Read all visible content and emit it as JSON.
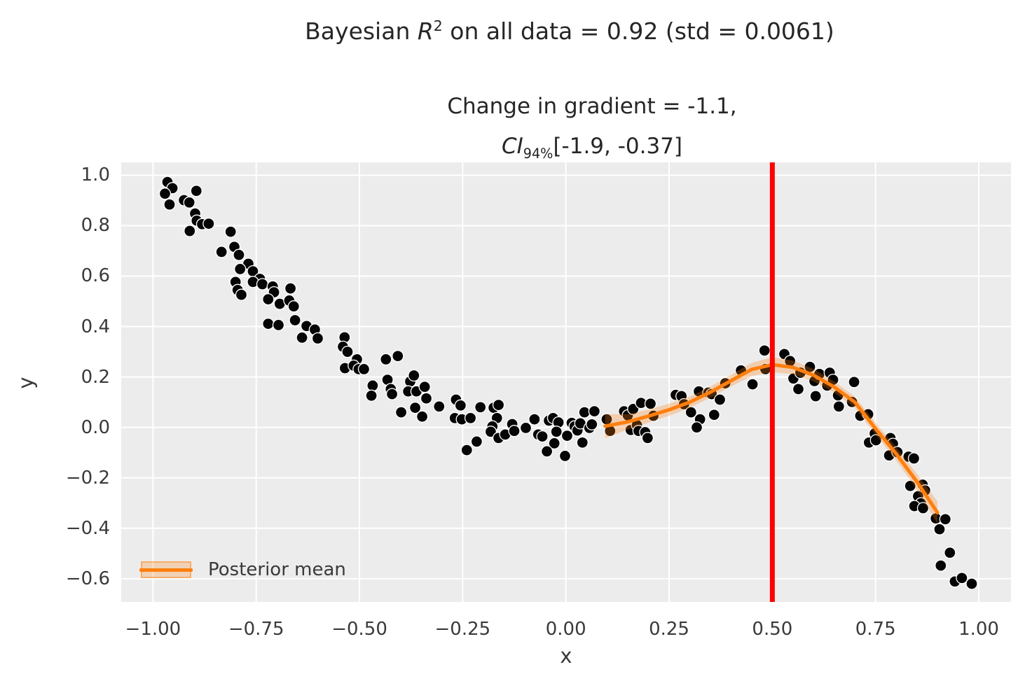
{
  "suptitle": {
    "pre": "Bayesian ",
    "var": "R",
    "sup": "2",
    "post": " on all data = 0.92 (std = 0.0061)"
  },
  "axes_title": {
    "line1": "Change in gradient = -1.1,",
    "ci_var": "CI",
    "ci_sub": "94%",
    "ci_rest": "[-1.9, -0.37]"
  },
  "legend": {
    "label": "Posterior mean"
  },
  "axis": {
    "xlabel": "x",
    "ylabel": "y",
    "x_ticks": [
      {
        "v": -1.0,
        "label": "−1.00"
      },
      {
        "v": -0.75,
        "label": "−0.75"
      },
      {
        "v": -0.5,
        "label": "−0.50"
      },
      {
        "v": -0.25,
        "label": "−0.25"
      },
      {
        "v": 0.0,
        "label": "0.00"
      },
      {
        "v": 0.25,
        "label": "0.25"
      },
      {
        "v": 0.5,
        "label": "0.50"
      },
      {
        "v": 0.75,
        "label": "0.75"
      },
      {
        "v": 1.0,
        "label": "1.00"
      }
    ],
    "y_ticks": [
      {
        "v": 1.0,
        "label": "1.0"
      },
      {
        "v": 0.8,
        "label": "0.8"
      },
      {
        "v": 0.6,
        "label": "0.6"
      },
      {
        "v": 0.4,
        "label": "0.4"
      },
      {
        "v": 0.2,
        "label": "0.2"
      },
      {
        "v": 0.0,
        "label": "0.0"
      },
      {
        "v": -0.2,
        "label": "−0.2"
      },
      {
        "v": -0.4,
        "label": "−0.4"
      },
      {
        "v": -0.6,
        "label": "−0.6"
      }
    ]
  },
  "colors": {
    "plot_bg": "#ececec",
    "grid": "#ffffff",
    "scatter": "#050505",
    "scatter_edge": "#ffffff",
    "mean_line": "#ff7f0e",
    "band": "#ff7f0e",
    "vline": "#fe0000",
    "text": "#262626",
    "tick_text": "#3a3a3a"
  },
  "chart_data": {
    "type": "scatter",
    "title": "Bayesian R^2 on all data = 0.92 (std = 0.0061)",
    "subtitle": "Change in gradient = -1.1, CI_94% [-1.9, -0.37]",
    "xlabel": "x",
    "ylabel": "y",
    "xlim": [
      -1.077,
      1.078
    ],
    "ylim": [
      -0.692,
      1.051
    ],
    "grid": true,
    "legend_position": "lower left",
    "vline": {
      "x": 0.5,
      "color": "#fe0000"
    },
    "scatter_points": [
      [
        -0.965,
        0.973
      ],
      [
        -0.953,
        0.949
      ],
      [
        -0.971,
        0.927
      ],
      [
        -0.895,
        0.938
      ],
      [
        -0.96,
        0.884
      ],
      [
        -0.925,
        0.901
      ],
      [
        -0.912,
        0.892
      ],
      [
        -0.898,
        0.848
      ],
      [
        -0.894,
        0.82
      ],
      [
        -0.881,
        0.806
      ],
      [
        -0.865,
        0.808
      ],
      [
        -0.911,
        0.779
      ],
      [
        -0.812,
        0.776
      ],
      [
        -0.834,
        0.696
      ],
      [
        -0.803,
        0.716
      ],
      [
        -0.792,
        0.684
      ],
      [
        -0.769,
        0.649
      ],
      [
        -0.789,
        0.628
      ],
      [
        -0.758,
        0.619
      ],
      [
        -0.741,
        0.589
      ],
      [
        -0.758,
        0.577
      ],
      [
        -0.8,
        0.577
      ],
      [
        -0.795,
        0.545
      ],
      [
        -0.786,
        0.526
      ],
      [
        -0.735,
        0.568
      ],
      [
        -0.71,
        0.559
      ],
      [
        -0.707,
        0.536
      ],
      [
        -0.721,
        0.508
      ],
      [
        -0.693,
        0.49
      ],
      [
        -0.667,
        0.551
      ],
      [
        -0.67,
        0.503
      ],
      [
        -0.659,
        0.48
      ],
      [
        -0.721,
        0.411
      ],
      [
        -0.696,
        0.406
      ],
      [
        -0.656,
        0.425
      ],
      [
        -0.628,
        0.402
      ],
      [
        -0.608,
        0.388
      ],
      [
        -0.639,
        0.356
      ],
      [
        -0.601,
        0.353
      ],
      [
        -0.536,
        0.357
      ],
      [
        -0.54,
        0.32
      ],
      [
        -0.529,
        0.3
      ],
      [
        -0.506,
        0.27
      ],
      [
        -0.535,
        0.235
      ],
      [
        -0.514,
        0.245
      ],
      [
        -0.502,
        0.231
      ],
      [
        -0.489,
        0.231
      ],
      [
        -0.436,
        0.27
      ],
      [
        -0.407,
        0.283
      ],
      [
        -0.468,
        0.166
      ],
      [
        -0.471,
        0.126
      ],
      [
        -0.432,
        0.189
      ],
      [
        -0.424,
        0.152
      ],
      [
        -0.421,
        0.132
      ],
      [
        -0.377,
        0.182
      ],
      [
        -0.368,
        0.206
      ],
      [
        -0.382,
        0.143
      ],
      [
        -0.362,
        0.143
      ],
      [
        -0.342,
        0.161
      ],
      [
        -0.338,
        0.115
      ],
      [
        -0.399,
        0.06
      ],
      [
        -0.365,
        0.078
      ],
      [
        -0.348,
        0.043
      ],
      [
        -0.307,
        0.083
      ],
      [
        -0.266,
        0.11
      ],
      [
        -0.255,
        0.087
      ],
      [
        -0.269,
        0.037
      ],
      [
        -0.252,
        0.032
      ],
      [
        -0.231,
        0.037
      ],
      [
        -0.216,
        -0.056
      ],
      [
        -0.24,
        -0.09
      ],
      [
        -0.207,
        0.08
      ],
      [
        -0.175,
        0.078
      ],
      [
        -0.163,
        0.089
      ],
      [
        -0.167,
        0.037
      ],
      [
        -0.178,
        0.004
      ],
      [
        -0.182,
        -0.017
      ],
      [
        -0.163,
        -0.042
      ],
      [
        -0.147,
        -0.028
      ],
      [
        -0.13,
        0.013
      ],
      [
        -0.125,
        -0.014
      ],
      [
        -0.097,
        -0.002
      ],
      [
        -0.076,
        0.032
      ],
      [
        -0.067,
        -0.028
      ],
      [
        -0.057,
        -0.036
      ],
      [
        -0.041,
        0.027
      ],
      [
        -0.031,
        0.037
      ],
      [
        -0.018,
        0.02
      ],
      [
        -0.023,
        -0.017
      ],
      [
        -0.028,
        -0.063
      ],
      [
        -0.046,
        -0.095
      ],
      [
        -0.002,
        -0.113
      ],
      [
        0.003,
        -0.033
      ],
      [
        0.014,
        0.018
      ],
      [
        0.021,
        0.004
      ],
      [
        0.028,
        -0.012
      ],
      [
        0.035,
        0.016
      ],
      [
        0.045,
        0.06
      ],
      [
        0.057,
        -0.002
      ],
      [
        0.063,
        0.012
      ],
      [
        0.04,
        -0.06
      ],
      [
        0.069,
        0.064
      ],
      [
        0.099,
        0.032
      ],
      [
        0.107,
        -0.014
      ],
      [
        0.141,
        0.064
      ],
      [
        0.15,
        0.048
      ],
      [
        0.163,
        0.073
      ],
      [
        0.157,
        -0.01
      ],
      [
        0.172,
        0.009
      ],
      [
        0.182,
        0.097
      ],
      [
        0.176,
        -0.014
      ],
      [
        0.192,
        -0.019
      ],
      [
        0.205,
        0.094
      ],
      [
        0.212,
        0.046
      ],
      [
        0.198,
        -0.042
      ],
      [
        0.266,
        0.129
      ],
      [
        0.28,
        0.124
      ],
      [
        0.286,
        0.092
      ],
      [
        0.303,
        0.06
      ],
      [
        0.322,
        0.143
      ],
      [
        0.325,
        0.032
      ],
      [
        0.317,
        0.0
      ],
      [
        0.345,
        0.138
      ],
      [
        0.353,
        0.132
      ],
      [
        0.359,
        0.05
      ],
      [
        0.373,
        0.11
      ],
      [
        0.386,
        0.175
      ],
      [
        0.424,
        0.226
      ],
      [
        0.452,
        0.171
      ],
      [
        0.481,
        0.305
      ],
      [
        0.483,
        0.231
      ],
      [
        0.529,
        0.291
      ],
      [
        0.543,
        0.263
      ],
      [
        0.551,
        0.194
      ],
      [
        0.563,
        0.152
      ],
      [
        0.568,
        0.217
      ],
      [
        0.591,
        0.24
      ],
      [
        0.602,
        0.184
      ],
      [
        0.605,
        0.124
      ],
      [
        0.614,
        0.212
      ],
      [
        0.639,
        0.217
      ],
      [
        0.633,
        0.166
      ],
      [
        0.647,
        0.189
      ],
      [
        0.659,
        0.127
      ],
      [
        0.698,
        0.18
      ],
      [
        0.661,
        0.083
      ],
      [
        0.693,
        0.101
      ],
      [
        0.713,
        0.046
      ],
      [
        0.732,
        0.052
      ],
      [
        0.748,
        -0.024
      ],
      [
        0.734,
        -0.06
      ],
      [
        0.751,
        -0.051
      ],
      [
        0.786,
        -0.042
      ],
      [
        0.792,
        -0.065
      ],
      [
        0.783,
        -0.111
      ],
      [
        0.803,
        -0.098
      ],
      [
        0.83,
        -0.116
      ],
      [
        0.843,
        -0.123
      ],
      [
        0.834,
        -0.232
      ],
      [
        0.864,
        -0.227
      ],
      [
        0.87,
        -0.25
      ],
      [
        0.853,
        -0.273
      ],
      [
        0.86,
        -0.301
      ],
      [
        0.844,
        -0.312
      ],
      [
        0.865,
        -0.32
      ],
      [
        0.896,
        -0.361
      ],
      [
        0.919,
        -0.364
      ],
      [
        0.905,
        -0.404
      ],
      [
        0.93,
        -0.497
      ],
      [
        0.908,
        -0.548
      ],
      [
        0.942,
        -0.611
      ],
      [
        0.959,
        -0.597
      ],
      [
        0.983,
        -0.62
      ]
    ],
    "posterior_mean": {
      "name": "Posterior mean",
      "x": [
        0.095,
        0.15,
        0.2,
        0.25,
        0.3,
        0.35,
        0.4,
        0.45,
        0.5,
        0.55,
        0.6,
        0.65,
        0.7,
        0.75,
        0.8,
        0.85,
        0.9
      ],
      "y": [
        0.005,
        0.022,
        0.045,
        0.07,
        0.1,
        0.14,
        0.185,
        0.23,
        0.249,
        0.238,
        0.207,
        0.16,
        0.1,
        -0.005,
        -0.105,
        -0.215,
        -0.338
      ],
      "upper": [
        0.053,
        0.052,
        0.071,
        0.094,
        0.122,
        0.162,
        0.208,
        0.256,
        0.279,
        0.265,
        0.231,
        0.182,
        0.122,
        0.018,
        -0.079,
        -0.184,
        -0.294
      ],
      "lower": [
        -0.043,
        -0.008,
        0.019,
        0.046,
        0.078,
        0.118,
        0.162,
        0.204,
        0.219,
        0.211,
        0.183,
        0.138,
        0.078,
        -0.028,
        -0.131,
        -0.246,
        -0.382
      ],
      "band_opacity": 0.28
    }
  }
}
